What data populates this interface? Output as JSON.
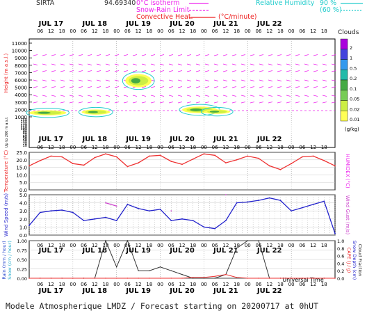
{
  "header": {
    "site": "SIRTA",
    "coords": "94.69340",
    "legend_left": [
      {
        "label": "0°C isotherm",
        "color": "#ee22ee"
      },
      {
        "label": "Snow-Rain Limit",
        "color": "#ee22ee"
      },
      {
        "label": "Convective Heat.",
        "color": "#ee2222"
      },
      {
        "label": "(°C/minute)",
        "color": "#ee2222"
      }
    ],
    "legend_right": [
      {
        "label": "Relative Humidity",
        "value": "90 %",
        "color": "#22cccc"
      },
      {
        "label": "",
        "value": "(60 %)",
        "color": "#22cccc"
      }
    ],
    "clouds_label": "Clouds",
    "cloud_scale": [
      "2",
      "1",
      "0.5",
      "0.2",
      "0.1",
      "0.05",
      "0.02",
      "0.01"
    ],
    "cloud_unit": "(g/kg)",
    "cloud_colors": [
      "#aa00dd",
      "#4444dd",
      "#3399ee",
      "#22bbaa",
      "#44aa44",
      "#77cc55",
      "#ccee44",
      "#ffff55"
    ]
  },
  "time_axis": {
    "days": [
      "JUL 17",
      "JUL 18",
      "JUL 19",
      "JUL 20",
      "JUL 21",
      "JUL 22"
    ],
    "hours": [
      "06",
      "12",
      "18",
      "00"
    ],
    "xlabel": "Universal Time"
  },
  "footer": "Modele Atmospherique LMDZ / Forecast starting on 20200717 at 0hUT",
  "chart_data": [
    {
      "type": "heatmap",
      "name": "cloud-height",
      "ylabel": "Height (m a.s.l.)",
      "ylabel_low": "Up to 200 m a.s.l.",
      "yticks": [
        11000,
        10000,
        9000,
        8000,
        7000,
        6000,
        5000,
        4000,
        3000,
        2000,
        1000
      ],
      "yticks_low": [
        150,
        140,
        130,
        120,
        110,
        100,
        90,
        80,
        70,
        60,
        50,
        40,
        30,
        20,
        10
      ],
      "cloud_patches": [
        {
          "day_start": 0.0,
          "day_end": 0.85,
          "base_m": 1200,
          "top_m": 1900
        },
        {
          "day_start": 1.2,
          "day_end": 1.85,
          "base_m": 1300,
          "top_m": 2000
        },
        {
          "day_start": 2.2,
          "day_end": 2.8,
          "base_m": 5000,
          "top_m": 6800
        },
        {
          "day_start": 3.5,
          "day_end": 4.3,
          "base_m": 1500,
          "top_m": 2400
        },
        {
          "day_start": 4.0,
          "day_end": 4.6,
          "base_m": 1400,
          "top_m": 2000
        }
      ]
    },
    {
      "type": "line",
      "name": "temperature",
      "ylabel": "Temperature (°C)",
      "ylabel_right": "HUMIDEX (°C)",
      "yticks": [
        25.0,
        20.0,
        15.0,
        10.0,
        5.0,
        0.0
      ],
      "ylim": [
        0,
        25
      ],
      "x_hours": [
        0,
        6,
        12,
        18,
        24,
        30,
        36,
        42,
        48,
        54,
        60,
        66,
        72,
        78,
        84,
        90,
        96,
        102,
        108,
        114,
        120,
        126,
        132,
        138,
        144,
        150,
        156,
        162,
        168
      ],
      "series": [
        {
          "values": [
            16.0,
            19.5,
            22.5,
            22.0,
            17.5,
            16.5,
            21.5,
            24.0,
            22.0,
            15.5,
            18.0,
            22.5,
            23.0,
            19.0,
            17.0,
            20.5,
            24.0,
            23.0,
            18.0,
            20.0,
            22.5,
            21.0,
            16.0,
            13.5,
            17.5,
            22.0,
            22.5,
            19.5,
            16.0
          ],
          "color": "#ee3333"
        }
      ]
    },
    {
      "type": "line",
      "name": "wind",
      "ylabel": "Wind Speed (m/s)",
      "ylabel_right": "Wind Gust (m/s)",
      "yticks": [
        5.0,
        4.0,
        3.0,
        2.0,
        1.0,
        0.0
      ],
      "ylim": [
        0,
        5
      ],
      "x_hours": [
        0,
        6,
        12,
        18,
        24,
        30,
        36,
        42,
        48,
        54,
        60,
        66,
        72,
        78,
        84,
        90,
        96,
        102,
        108,
        114,
        120,
        126,
        132,
        138,
        144,
        150,
        156,
        162,
        168
      ],
      "series": [
        {
          "name": "Wind Speed",
          "values": [
            1.2,
            2.8,
            3.0,
            3.1,
            2.8,
            1.8,
            2.0,
            2.2,
            1.8,
            3.8,
            3.3,
            3.0,
            3.2,
            1.8,
            2.0,
            1.8,
            1.0,
            0.8,
            1.8,
            4.0,
            4.1,
            4.3,
            4.6,
            4.3,
            3.0,
            3.4,
            3.8,
            4.2,
            0.2
          ],
          "color": "#2222cc"
        },
        {
          "name": "Wind Gust",
          "values": [
            null,
            null,
            null,
            null,
            null,
            null,
            null,
            4.0,
            3.6,
            null,
            null,
            null,
            null,
            3.0,
            null,
            null,
            null,
            null,
            5.0,
            null,
            null,
            null,
            null,
            null,
            null,
            null,
            null,
            null,
            null
          ],
          "color": "#cc44cc"
        }
      ]
    },
    {
      "type": "line",
      "name": "rain",
      "ylabel_left": [
        "Rain (mm / hour)",
        "Snow (cm / hour)"
      ],
      "ylabel_right": [
        "CAPE (J / g)",
        "Snow Depth (cm)",
        "Cloud Fraction"
      ],
      "yticks_left": [
        1.0,
        0.75,
        0.5,
        0.25,
        0.0
      ],
      "yticks_right": [
        1.0,
        0.8,
        0.6,
        0.4,
        0.2,
        0.0
      ],
      "x_hours": [
        0,
        6,
        12,
        18,
        24,
        30,
        36,
        42,
        48,
        54,
        60,
        66,
        72,
        78,
        84,
        90,
        96,
        102,
        108,
        114,
        120,
        126,
        132,
        138,
        144,
        150,
        156,
        162,
        168
      ],
      "series": [
        {
          "name": "Cloud Fraction",
          "values": [
            0.0,
            0.0,
            0.0,
            0.0,
            0.0,
            0.0,
            0.0,
            1.0,
            0.3,
            1.0,
            0.2,
            0.2,
            0.3,
            0.2,
            0.1,
            0.0,
            0.0,
            0.0,
            0.1,
            0.8,
            1.0,
            1.0,
            0.0,
            0.0,
            0.0,
            0.0,
            0.0,
            0.0,
            0.0
          ],
          "color": "#333333"
        },
        {
          "name": "Rain",
          "values": [
            0,
            0,
            0,
            0,
            0,
            0,
            0,
            0,
            0,
            0,
            0,
            0,
            0,
            0,
            0,
            0.02,
            0.02,
            0.05,
            0.1,
            0.02,
            0,
            0,
            0,
            0,
            0,
            0,
            0,
            0,
            0
          ],
          "color": "#ee3333"
        }
      ]
    }
  ]
}
